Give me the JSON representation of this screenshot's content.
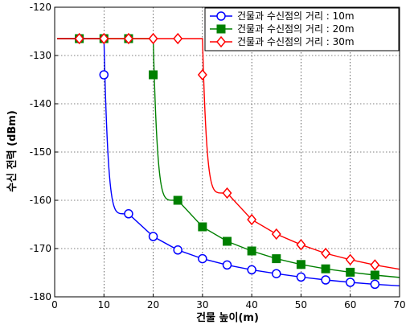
{
  "chart_data": {
    "type": "line",
    "xlabel": "건물 높이(m)",
    "ylabel": "수신 전력 (dBm)",
    "xlim": [
      0,
      70
    ],
    "ylim": [
      -180,
      -120
    ],
    "xticks": [
      0,
      10,
      20,
      30,
      40,
      50,
      60,
      70
    ],
    "yticks": [
      -120,
      -130,
      -140,
      -150,
      -160,
      -170,
      -180
    ],
    "grid": true,
    "legend_position": "top-right",
    "series": [
      {
        "name": "건물과 수신점의 거리 : 10m",
        "color": "#0000ff",
        "marker": "circle",
        "threshold": 10,
        "x": [
          5,
          10,
          15,
          20,
          25,
          30,
          35,
          40,
          45,
          50,
          55,
          60,
          65
        ],
        "y": [
          -126.5,
          -134,
          -162.8,
          -167.5,
          -170.3,
          -172.1,
          -173.4,
          -174.4,
          -175.2,
          -175.9,
          -176.5,
          -177.0,
          -177.4
        ]
      },
      {
        "name": "건물과 수신점의 거리 : 20m",
        "color": "#008000",
        "marker": "square",
        "threshold": 20,
        "x": [
          5,
          10,
          15,
          20,
          25,
          30,
          35,
          40,
          45,
          50,
          55,
          60,
          65
        ],
        "y": [
          -126.5,
          -126.5,
          -126.5,
          -134,
          -160,
          -165.5,
          -168.5,
          -170.5,
          -172.1,
          -173.3,
          -174.2,
          -174.9,
          -175.5
        ]
      },
      {
        "name": "건물과 수신점의 거리 : 30m",
        "color": "#ff0000",
        "marker": "diamond",
        "threshold": 30,
        "x": [
          5,
          10,
          15,
          20,
          25,
          30,
          35,
          40,
          45,
          50,
          55,
          60,
          65
        ],
        "y": [
          -126.5,
          -126.5,
          -126.5,
          -126.5,
          -126.5,
          -134,
          -158.5,
          -164,
          -167,
          -169.2,
          -171,
          -172.3,
          -173.4
        ]
      }
    ]
  }
}
